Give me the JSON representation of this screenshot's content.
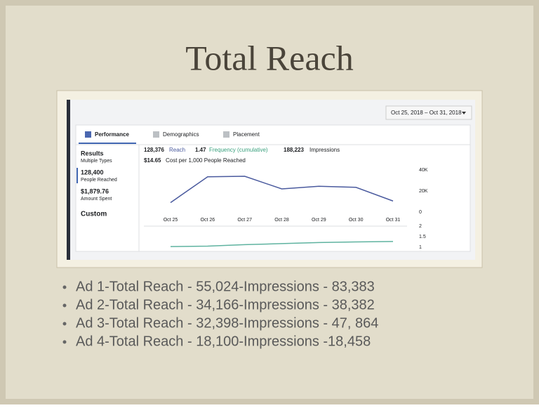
{
  "title": "Total Reach",
  "screenshot": {
    "date_range": "Oct 25, 2018 – Oct 31, 2018",
    "tabs": [
      "Performance",
      "Demographics",
      "Placement"
    ],
    "sidebar": [
      {
        "value": "Results",
        "label": "Multiple Types"
      },
      {
        "value": "128,400",
        "label": "People Reached"
      },
      {
        "value": "$1,879.76",
        "label": "Amount Spent"
      }
    ],
    "custom": "Custom",
    "summary": {
      "reach": "128,376",
      "reach_label": "Reach",
      "frequency": "1.47",
      "frequency_label": "Frequency (cumulative)",
      "impressions": "188,223",
      "impressions_label": "Impressions",
      "cost": "$14.65",
      "cost_label": "Cost per 1,000 People Reached"
    }
  },
  "chart_data": [
    {
      "type": "line",
      "categories": [
        "Oct 25",
        "Oct 26",
        "Oct 27",
        "Oct 28",
        "Oct 29",
        "Oct 30",
        "Oct 31"
      ],
      "values": [
        9000,
        33500,
        34000,
        22000,
        24500,
        23500,
        10500
      ],
      "color": "#4a5a9e",
      "ylim": [
        0,
        40000
      ],
      "yticks": [
        {
          "value": 0,
          "label": "0"
        },
        {
          "value": 20000,
          "label": "20K"
        },
        {
          "value": 40000,
          "label": "40K"
        }
      ]
    },
    {
      "type": "line",
      "values": [
        1.03,
        1.05,
        1.12,
        1.17,
        1.22,
        1.25,
        1.27
      ],
      "color": "#5fb3a0",
      "ylim": [
        1,
        2
      ],
      "yticks": [
        1,
        1.5,
        2
      ]
    }
  ],
  "bullets": [
    "Ad 1-Total Reach - 55,024-Impressions - 83,383",
    "Ad 2-Total Reach - 34,166-Impressions - 38,382",
    "Ad 3-Total Reach - 32,398-Impressions - 47, 864",
    "Ad 4-Total Reach - 18,100-Impressions -18,458"
  ]
}
